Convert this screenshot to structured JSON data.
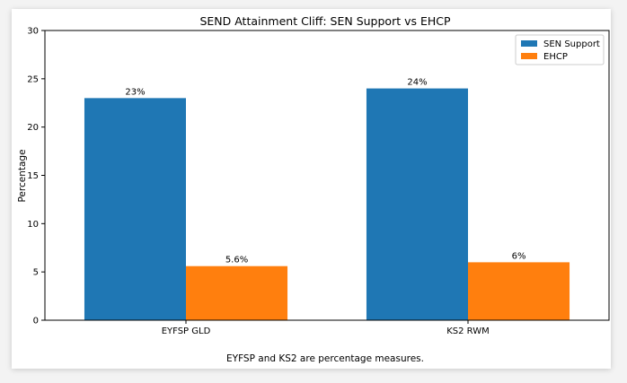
{
  "chart_data": {
    "type": "bar",
    "title": "SEND Attainment Cliff: SEN Support vs EHCP",
    "xlabel": "",
    "ylabel": "Percentage",
    "ylim": [
      0,
      30
    ],
    "yticks": [
      0,
      5,
      10,
      15,
      20,
      25,
      30
    ],
    "categories": [
      "EYFSP GLD",
      "KS2 RWM"
    ],
    "series": [
      {
        "name": "SEN Support",
        "values": [
          23,
          24
        ],
        "labels": [
          "23%",
          "24%"
        ],
        "color": "#1f77b4"
      },
      {
        "name": "EHCP",
        "values": [
          5.6,
          6
        ],
        "labels": [
          "5.6%",
          "6%"
        ],
        "color": "#ff7f0e"
      }
    ],
    "legend_position": "top-right",
    "grid": false
  },
  "footnote": "EYFSP and KS2 are percentage measures."
}
